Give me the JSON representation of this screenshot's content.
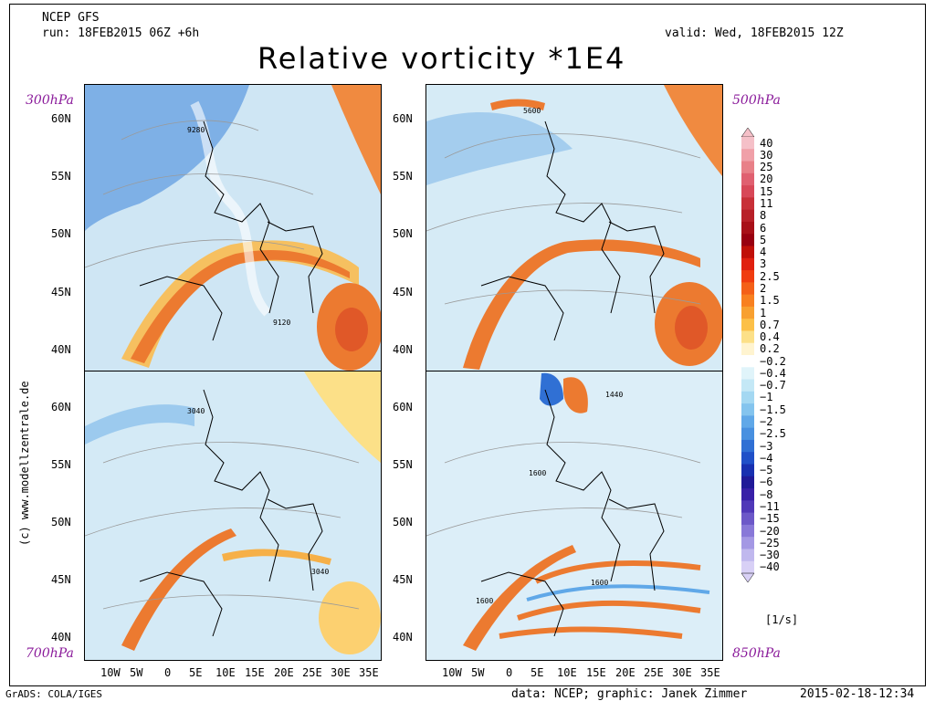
{
  "header": {
    "model": "NCEP GFS",
    "run": "run: 18FEB2015 06Z +6h",
    "valid": "valid: Wed, 18FEB2015 12Z",
    "title": "Relative vorticity *1E4"
  },
  "levels": {
    "top_left": "300hPa",
    "top_right": "500hPa",
    "bottom_left": "700hPa",
    "bottom_right": "850hPa"
  },
  "contour_labels": {
    "p300_a": "9280",
    "p300_b": "9120",
    "p500_a": "5600",
    "p700_a": "3040",
    "p700_b": "3040",
    "p850_a": "1440",
    "p850_b": "1600",
    "p850_c": "1600",
    "p850_d": "1600"
  },
  "latitudes": [
    "60N",
    "55N",
    "50N",
    "45N",
    "40N"
  ],
  "longitudes": [
    "10W",
    "5W",
    "0",
    "5E",
    "10E",
    "15E",
    "20E",
    "25E",
    "30E",
    "35E"
  ],
  "legend": {
    "labels": [
      "40",
      "30",
      "25",
      "20",
      "15",
      "11",
      "8",
      "6",
      "5",
      "4",
      "3",
      "2.5",
      "2",
      "1.5",
      "1",
      "0.7",
      "0.4",
      "0.2",
      "−0.2",
      "−0.4",
      "−0.7",
      "−1",
      "−1.5",
      "−2",
      "−2.5",
      "−3",
      "−4",
      "−5",
      "−6",
      "−8",
      "−11",
      "−15",
      "−20",
      "−25",
      "−30",
      "−40"
    ],
    "colors": [
      "#f5c0c8",
      "#f0a0a8",
      "#e88088",
      "#e06070",
      "#d84858",
      "#c83038",
      "#b82028",
      "#a81018",
      "#980010",
      "#c01008",
      "#e02010",
      "#f03c10",
      "#f46018",
      "#f88020",
      "#f8a030",
      "#fcc048",
      "#fce088",
      "#fff4d0",
      "#ffffff",
      "#e0f4fa",
      "#c4e8f6",
      "#a4d8f2",
      "#84c4ee",
      "#60a8e8",
      "#4890e0",
      "#3070d4",
      "#2050c8",
      "#1830b0",
      "#201a98",
      "#3820a8",
      "#5038b8",
      "#6c58c8",
      "#8878d8",
      "#a498e4",
      "#c0b8ee",
      "#d8d0f6"
    ],
    "units": "[1/s]"
  },
  "footer": {
    "left": "GrADS: COLA/IGES",
    "center": "data: NCEP; graphic: Janek Zimmer",
    "right": "2015-02-18-12:34",
    "credit": "(c) www.modellzentrale.de"
  }
}
